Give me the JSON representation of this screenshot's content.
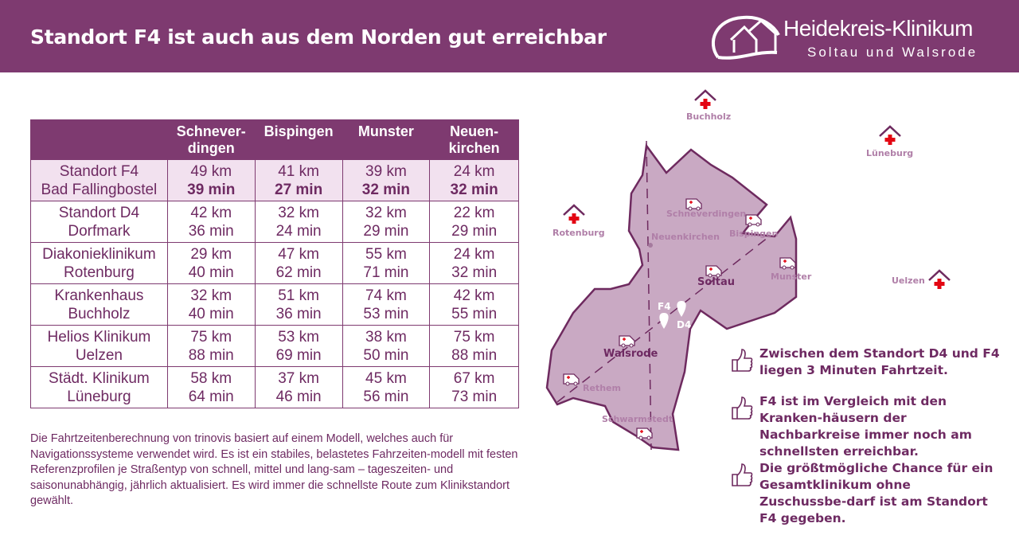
{
  "header": {
    "title": "Standort F4 ist auch aus dem Norden gut erreichbar",
    "logo": {
      "name": "Heidekreis-Klinikum",
      "subtitle": "Soltau und Walsrode"
    }
  },
  "table": {
    "columns": [
      "",
      "Schnever-\ndingen",
      "Bispingen",
      "Munster",
      "Neuen-\nkirchen"
    ],
    "rows": [
      {
        "name": "Standort F4",
        "place": "Bad Fallingbostel",
        "highlight": true,
        "cells": [
          [
            "49 km",
            "39 min"
          ],
          [
            "41 km",
            "27 min"
          ],
          [
            "39 km",
            "32 min"
          ],
          [
            "24 km",
            "32 min"
          ]
        ]
      },
      {
        "name": "Standort D4",
        "place": "Dorfmark",
        "cells": [
          [
            "42 km",
            "36 min"
          ],
          [
            "32 km",
            "24 min"
          ],
          [
            "32 km",
            "29 min"
          ],
          [
            "22 km",
            "29 min"
          ]
        ]
      },
      {
        "name": "Diakonieklinikum",
        "place": "Rotenburg",
        "cells": [
          [
            "29 km",
            "40 min"
          ],
          [
            "47 km",
            "62 min"
          ],
          [
            "55 km",
            "71 min"
          ],
          [
            "24 km",
            "32 min"
          ]
        ]
      },
      {
        "name": "Krankenhaus",
        "place": "Buchholz",
        "cells": [
          [
            "32 km",
            "40 min"
          ],
          [
            "51 km",
            "36 min"
          ],
          [
            "74 km",
            "53 min"
          ],
          [
            "42 km",
            "55 min"
          ]
        ]
      },
      {
        "name": "Helios Klinikum",
        "place": "Uelzen",
        "cells": [
          [
            "75 km",
            "88 min"
          ],
          [
            "53 km",
            "69 min"
          ],
          [
            "38 km",
            "50 min"
          ],
          [
            "75 km",
            "88 min"
          ]
        ]
      },
      {
        "name": "Städt. Klinikum",
        "place": "Lüneburg",
        "cells": [
          [
            "58 km",
            "64 min"
          ],
          [
            "37 km",
            "46 min"
          ],
          [
            "45 km",
            "56 min"
          ],
          [
            "67 km",
            "73 min"
          ]
        ]
      }
    ]
  },
  "footnote": "Die Fahrtzeitenberechnung von trinovis basiert auf einem Modell, welches auch für Navigationssysteme verwendet wird. Es ist ein stabiles, belastetes Fahrzeiten-modell mit festen Referenzprofilen je Straßentyp von schnell, mittel und lang-sam – tageszeiten- und saisonunabhängig, jährlich aktualisiert. Es wird immer die schnellste Route zum Klinikstandort gewählt.",
  "map": {
    "hospitals": [
      "Buchholz",
      "Lüneburg",
      "Rotenburg",
      "Uelzen"
    ],
    "towns": [
      "Schneverdingen",
      "Bispingen",
      "Neuenkirchen",
      "Soltau",
      "Munster",
      "Walsrode",
      "Rethem",
      "Schwarmstedt"
    ],
    "pins": [
      "F4",
      "D4"
    ],
    "colors": {
      "fill": "#c9a9c3",
      "outline": "#6e2a5f",
      "cross": "#e30613"
    }
  },
  "bullets": [
    "Zwischen dem Standort D4 und F4 liegen 3 Minuten Fahrtzeit.",
    "F4 ist im Vergleich mit den Kranken-häusern der Nachbarkreise immer noch am schnellsten erreichbar.",
    "Die größtmögliche Chance für ein Gesamtklinikum ohne Zuschussbe-darf ist am Standort F4 gegeben."
  ]
}
